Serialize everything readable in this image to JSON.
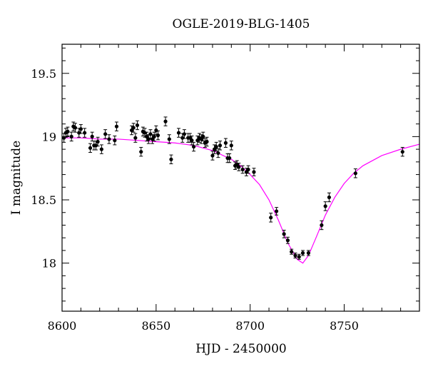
{
  "chart_data": {
    "type": "scatter",
    "title": "OGLE-2019-BLG-1405",
    "xlabel": "HJD - 2450000",
    "ylabel": "I magnitude",
    "xlim": [
      8600,
      8790
    ],
    "ylim": [
      19.73,
      17.62
    ],
    "y_inverted": true,
    "grid": false,
    "x_ticks": [
      8600,
      8650,
      8700,
      8750
    ],
    "y_ticks": [
      18,
      18.5,
      19,
      19.5
    ],
    "colors": {
      "points": "#000000",
      "model": "#ff00ff",
      "axes": "#000000"
    },
    "series": [
      {
        "marker": "filled-circle-with-errorbars",
        "x": [
          8601,
          8602,
          8603,
          8605,
          8606,
          8607,
          8609,
          8610,
          8612,
          8615,
          8616,
          8617,
          8618,
          8619,
          8621,
          8623,
          8625,
          8628,
          8629,
          8637,
          8638,
          8639,
          8640,
          8642,
          8643,
          8644,
          8645,
          8646,
          8647,
          8648,
          8649,
          8650,
          8651,
          8655,
          8657,
          8658,
          8662,
          8664,
          8665,
          8667,
          8668,
          8669,
          8670,
          8672,
          8673,
          8674,
          8675,
          8676,
          8677,
          8680,
          8681,
          8682,
          8683,
          8684,
          8687,
          8688,
          8689,
          8690,
          8692,
          8693,
          8694,
          8696,
          8698,
          8699,
          8702,
          8711,
          8714,
          8718,
          8720,
          8722,
          8724,
          8726,
          8728,
          8731,
          8738,
          8740,
          8742,
          8756,
          8781
        ],
        "y": [
          18.99,
          19.03,
          19.04,
          19.0,
          19.08,
          19.07,
          19.03,
          19.06,
          19.03,
          18.91,
          19.0,
          18.93,
          18.93,
          18.96,
          18.9,
          19.02,
          18.98,
          18.97,
          19.08,
          19.05,
          19.07,
          18.99,
          19.09,
          18.88,
          19.04,
          19.03,
          19.0,
          18.98,
          19.02,
          18.98,
          19.0,
          19.05,
          19.01,
          19.12,
          18.98,
          18.82,
          19.03,
          18.99,
          19.02,
          18.99,
          18.99,
          18.97,
          18.92,
          18.97,
          18.99,
          18.98,
          19.0,
          18.95,
          18.96,
          18.85,
          18.9,
          18.92,
          18.87,
          18.93,
          18.95,
          18.83,
          18.83,
          18.93,
          18.77,
          18.78,
          18.76,
          18.74,
          18.72,
          18.74,
          18.72,
          18.36,
          18.41,
          18.23,
          18.18,
          18.09,
          18.06,
          18.05,
          18.08,
          18.08,
          18.3,
          18.45,
          18.52,
          18.71,
          18.88
        ],
        "err": [
          0.035,
          0.035,
          0.035,
          0.035,
          0.035,
          0.035,
          0.035,
          0.035,
          0.035,
          0.035,
          0.035,
          0.035,
          0.035,
          0.035,
          0.035,
          0.035,
          0.035,
          0.035,
          0.035,
          0.035,
          0.035,
          0.035,
          0.035,
          0.035,
          0.035,
          0.035,
          0.035,
          0.035,
          0.035,
          0.035,
          0.035,
          0.035,
          0.035,
          0.035,
          0.035,
          0.035,
          0.035,
          0.035,
          0.035,
          0.035,
          0.035,
          0.035,
          0.035,
          0.035,
          0.035,
          0.035,
          0.035,
          0.035,
          0.035,
          0.035,
          0.035,
          0.035,
          0.035,
          0.035,
          0.035,
          0.035,
          0.035,
          0.035,
          0.03,
          0.03,
          0.03,
          0.03,
          0.03,
          0.03,
          0.03,
          0.035,
          0.03,
          0.03,
          0.025,
          0.02,
          0.02,
          0.02,
          0.02,
          0.02,
          0.035,
          0.035,
          0.035,
          0.035,
          0.035
        ]
      },
      {
        "type": "line",
        "style": "model-curve",
        "x": [
          8600,
          8610,
          8620,
          8630,
          8640,
          8650,
          8660,
          8670,
          8680,
          8690,
          8695,
          8700,
          8705,
          8710,
          8715,
          8720,
          8725,
          8728,
          8731,
          8735,
          8740,
          8745,
          8750,
          8755,
          8760,
          8770,
          8780,
          8790
        ],
        "y": [
          18.99,
          18.99,
          18.98,
          18.98,
          18.97,
          18.96,
          18.95,
          18.93,
          18.89,
          18.82,
          18.77,
          18.7,
          18.62,
          18.5,
          18.34,
          18.16,
          18.03,
          18.0,
          18.06,
          18.2,
          18.38,
          18.52,
          18.63,
          18.71,
          18.77,
          18.85,
          18.9,
          18.94
        ]
      }
    ]
  }
}
